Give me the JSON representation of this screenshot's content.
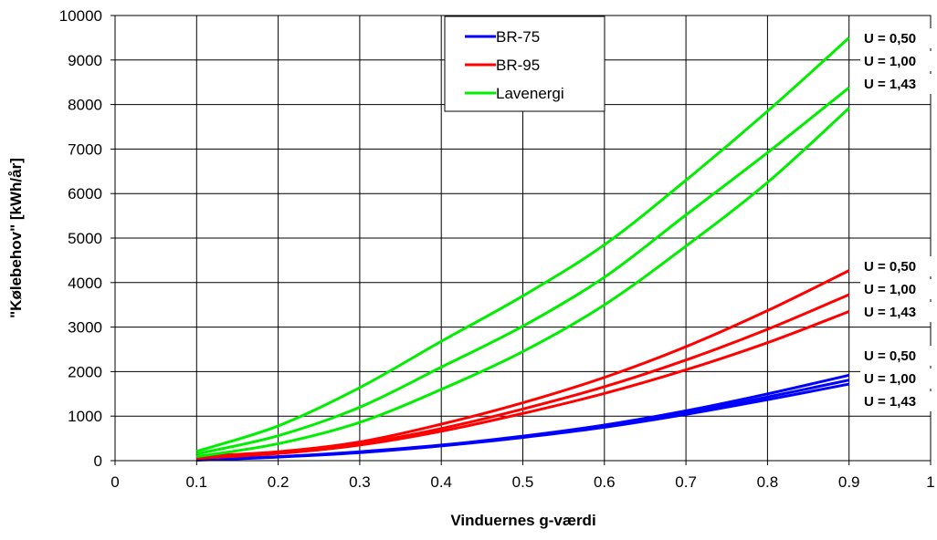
{
  "chart_data": {
    "type": "line",
    "xlabel": "Vinduernes g-værdi",
    "ylabel": "\"Kølebehov\"  [kWh/år]",
    "xlim": [
      0,
      1
    ],
    "ylim": [
      0,
      10000
    ],
    "xticks": [
      0,
      0.1,
      0.2,
      0.3,
      0.4,
      0.5,
      0.6,
      0.7,
      0.8,
      0.9,
      1
    ],
    "xtick_labels": [
      "0",
      "0.1",
      "0.2",
      "0.3",
      "0.4",
      "0.5",
      "0.6",
      "0.7",
      "0.8",
      "0.9",
      "1"
    ],
    "yticks": [
      0,
      1000,
      2000,
      3000,
      4000,
      5000,
      6000,
      7000,
      8000,
      9000,
      10000
    ],
    "ytick_labels": [
      "0",
      "1000",
      "2000",
      "3000",
      "4000",
      "5000",
      "6000",
      "7000",
      "8000",
      "9000",
      "10000"
    ],
    "grid": true,
    "legend_position": "top-center",
    "x": [
      0.1,
      0.2,
      0.3,
      0.4,
      0.5,
      0.6,
      0.7,
      0.8,
      0.9
    ],
    "groups": [
      {
        "name": "BR-75",
        "color": "#0000ff"
      },
      {
        "name": "BR-95",
        "color": "#ff0000"
      },
      {
        "name": "Lavenergi",
        "color": "#00ee00"
      }
    ],
    "series": [
      {
        "group": "BR-75",
        "u_label": "U = 0,50",
        "values": [
          20,
          90,
          200,
          350,
          550,
          800,
          1120,
          1500,
          1920
        ]
      },
      {
        "group": "BR-75",
        "u_label": "U = 1,00",
        "values": [
          15,
          85,
          190,
          340,
          530,
          770,
          1080,
          1430,
          1810
        ]
      },
      {
        "group": "BR-75",
        "u_label": "U = 1,43",
        "values": [
          10,
          80,
          180,
          330,
          520,
          750,
          1040,
          1370,
          1720
        ]
      },
      {
        "group": "BR-95",
        "u_label": "U = 0,50",
        "values": [
          100,
          200,
          420,
          820,
          1300,
          1870,
          2560,
          3370,
          4270
        ]
      },
      {
        "group": "BR-95",
        "u_label": "U = 1,00",
        "values": [
          70,
          180,
          380,
          720,
          1160,
          1660,
          2260,
          2950,
          3730
        ]
      },
      {
        "group": "BR-95",
        "u_label": "U = 1,43",
        "values": [
          50,
          160,
          350,
          660,
          1060,
          1510,
          2040,
          2650,
          3350
        ]
      },
      {
        "group": "Lavenergi",
        "u_label": "U = 0,50",
        "values": [
          210,
          780,
          1640,
          2680,
          3700,
          4850,
          6300,
          7850,
          9500
        ]
      },
      {
        "group": "Lavenergi",
        "u_label": "U = 1,00",
        "values": [
          150,
          560,
          1200,
          2100,
          3020,
          4120,
          5520,
          6920,
          8380
        ]
      },
      {
        "group": "Lavenergi",
        "u_label": "U = 1,43",
        "values": [
          90,
          380,
          860,
          1600,
          2450,
          3500,
          4820,
          6250,
          7920
        ]
      }
    ]
  }
}
